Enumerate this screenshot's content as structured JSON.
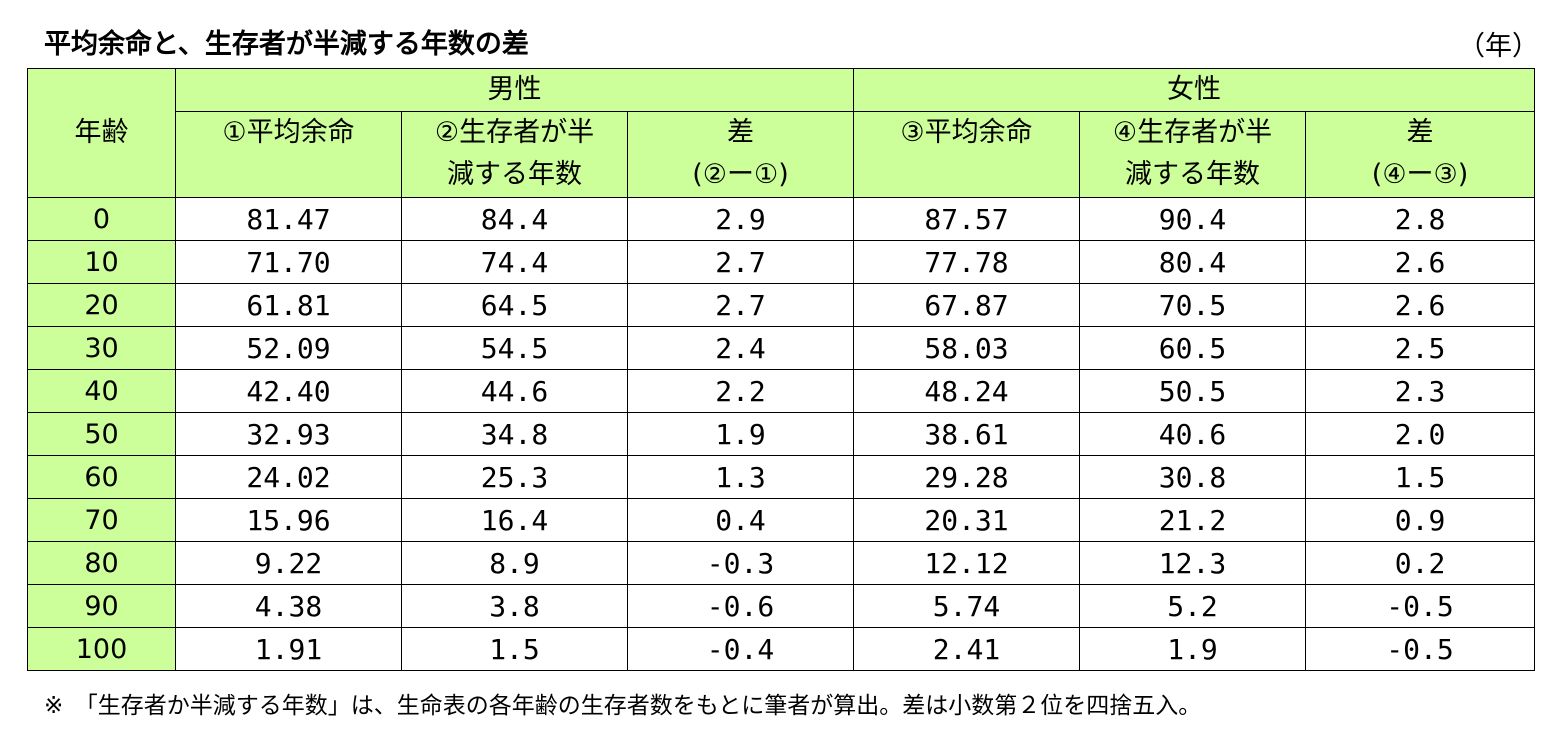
{
  "title": "平均余命と、生存者が半減する年数の差",
  "unit": "（年）",
  "headers": {
    "age": "年齢",
    "male": "男性",
    "female": "女性",
    "male_cols": [
      {
        "line1": "①平均余命",
        "line2": ""
      },
      {
        "line1": "②生存者が半",
        "line2": "減する年数"
      },
      {
        "line1": "差",
        "line2": "(②ー①)"
      }
    ],
    "female_cols": [
      {
        "line1": "③平均余命",
        "line2": ""
      },
      {
        "line1": "④生存者が半",
        "line2": "減する年数"
      },
      {
        "line1": "差",
        "line2": "(④ー③)"
      }
    ]
  },
  "rows": [
    {
      "age": "0",
      "m_life": "81.47",
      "m_half": "84.4",
      "m_diff": "2.9",
      "f_life": "87.57",
      "f_half": "90.4",
      "f_diff": "2.8"
    },
    {
      "age": "10",
      "m_life": "71.70",
      "m_half": "74.4",
      "m_diff": "2.7",
      "f_life": "77.78",
      "f_half": "80.4",
      "f_diff": "2.6"
    },
    {
      "age": "20",
      "m_life": "61.81",
      "m_half": "64.5",
      "m_diff": "2.7",
      "f_life": "67.87",
      "f_half": "70.5",
      "f_diff": "2.6"
    },
    {
      "age": "30",
      "m_life": "52.09",
      "m_half": "54.5",
      "m_diff": "2.4",
      "f_life": "58.03",
      "f_half": "60.5",
      "f_diff": "2.5"
    },
    {
      "age": "40",
      "m_life": "42.40",
      "m_half": "44.6",
      "m_diff": "2.2",
      "f_life": "48.24",
      "f_half": "50.5",
      "f_diff": "2.3"
    },
    {
      "age": "50",
      "m_life": "32.93",
      "m_half": "34.8",
      "m_diff": "1.9",
      "f_life": "38.61",
      "f_half": "40.6",
      "f_diff": "2.0"
    },
    {
      "age": "60",
      "m_life": "24.02",
      "m_half": "25.3",
      "m_diff": "1.3",
      "f_life": "29.28",
      "f_half": "30.8",
      "f_diff": "1.5"
    },
    {
      "age": "70",
      "m_life": "15.96",
      "m_half": "16.4",
      "m_diff": "0.4",
      "f_life": "20.31",
      "f_half": "21.2",
      "f_diff": "0.9"
    },
    {
      "age": "80",
      "m_life": "9.22",
      "m_half": "8.9",
      "m_diff": "-0.3",
      "f_life": "12.12",
      "f_half": "12.3",
      "f_diff": "0.2"
    },
    {
      "age": "90",
      "m_life": "4.38",
      "m_half": "3.8",
      "m_diff": "-0.6",
      "f_life": "5.74",
      "f_half": "5.2",
      "f_diff": "-0.5"
    },
    {
      "age": "100",
      "m_life": "1.91",
      "m_half": "1.5",
      "m_diff": "-0.4",
      "f_life": "2.41",
      "f_half": "1.9",
      "f_diff": "-0.5"
    }
  ],
  "note": "※　「生存者か半減する年数」は、生命表の各年齢の生存者数をもとに筆者が算出。差は小数第２位を四捨五入。",
  "colors": {
    "header_bg": "#ccff99",
    "border": "#000000"
  }
}
